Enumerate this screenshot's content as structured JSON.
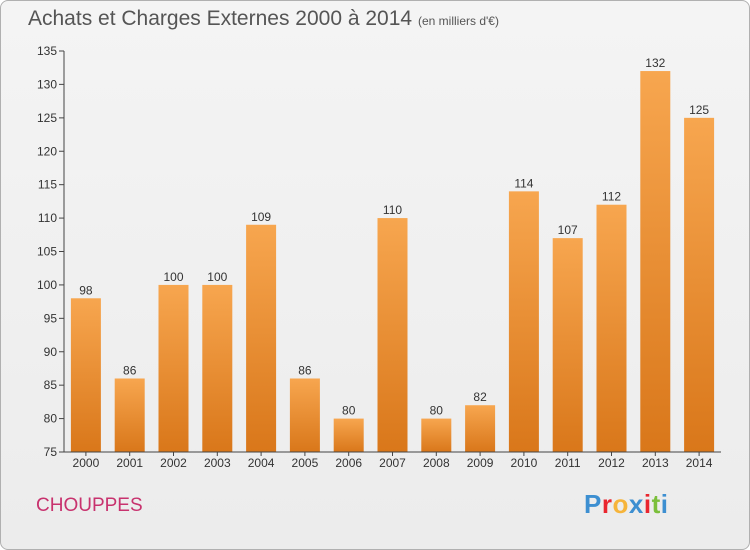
{
  "header": {
    "title": "Achats et Charges Externes 2000 à 2014",
    "unit": "(en milliers d'€)"
  },
  "footer": {
    "commune": "CHOUPPES",
    "logo_letters": [
      "P",
      "r",
      "o",
      "x",
      "i",
      "t",
      "i"
    ]
  },
  "colors": {
    "bar_top": "#f7a64f",
    "bar_bottom": "#d9771a",
    "logo": [
      "#3d8fd1",
      "#e9262f",
      "#f6b43a",
      "#3d8fd1",
      "#e9262f",
      "#7bbf3b",
      "#3d8fd1"
    ]
  },
  "chart_data": {
    "type": "bar",
    "title": "Achats et Charges Externes 2000 à 2014",
    "subtitle": "(en milliers d'€)",
    "xlabel": "",
    "ylabel": "",
    "ylim": [
      75,
      135
    ],
    "ytick_step": 5,
    "grid": false,
    "categories": [
      "2000",
      "2001",
      "2002",
      "2003",
      "2004",
      "2005",
      "2006",
      "2007",
      "2008",
      "2009",
      "2010",
      "2011",
      "2012",
      "2013",
      "2014"
    ],
    "values": [
      98,
      86,
      100,
      100,
      109,
      86,
      80,
      110,
      80,
      82,
      114,
      107,
      112,
      132,
      125
    ]
  }
}
